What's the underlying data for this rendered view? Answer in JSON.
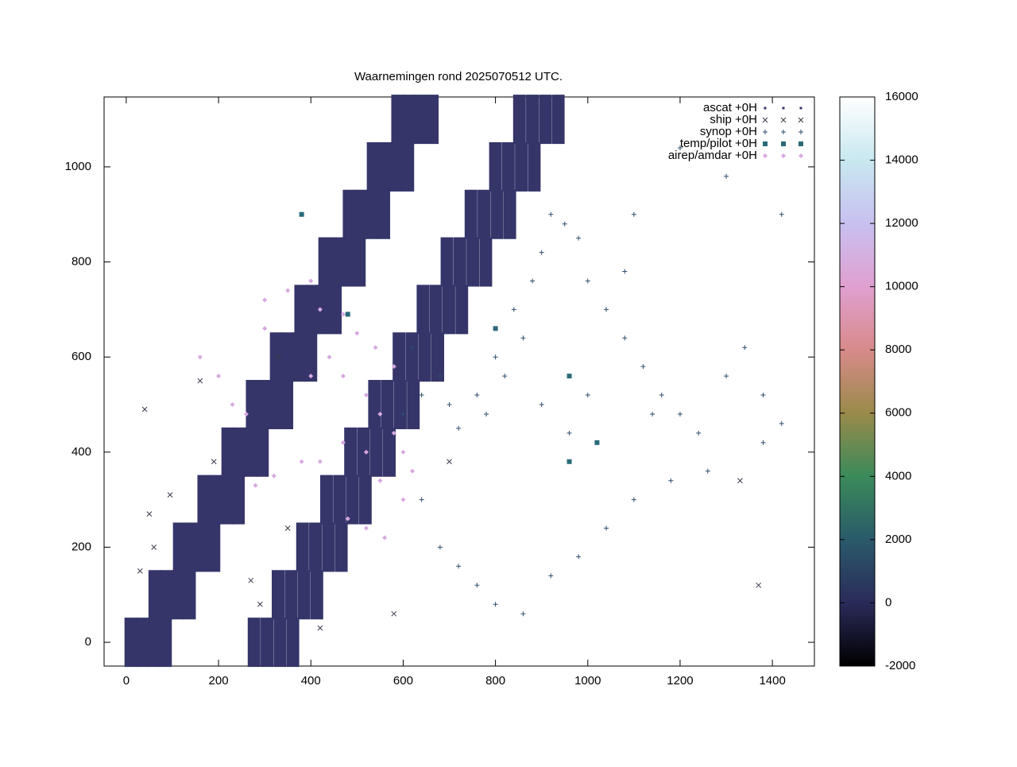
{
  "chart_data": {
    "type": "scatter",
    "title": "Waarnemingen rond 2025070512 UTC.",
    "xlim": [
      -48,
      1491
    ],
    "ylim": [
      -50,
      1147
    ],
    "xticks": [
      0,
      200,
      400,
      600,
      800,
      1000,
      1200,
      1400
    ],
    "yticks": [
      0,
      200,
      400,
      600,
      800,
      1000
    ],
    "grid": false,
    "legend": "top-right",
    "colorbar": {
      "lim": [
        -2000,
        16000
      ],
      "ticks": [
        -2000,
        0,
        2000,
        4000,
        6000,
        8000,
        10000,
        12000,
        14000,
        16000
      ],
      "colors": [
        "#000000",
        "#2a2a5a",
        "#2a5a6a",
        "#3a8a5a",
        "#9a8a4a",
        "#d88a8a",
        "#e0a0d0",
        "#c8c0f0",
        "#c8e8f0",
        "#ffffff"
      ]
    },
    "series": [
      {
        "name": "ascat +0H",
        "marker": "dot",
        "color": "#35356a",
        "x": [
          10,
          35,
          60,
          85,
          62,
          87,
          112,
          137,
          115,
          140,
          165,
          190,
          168,
          193,
          218,
          243,
          220,
          245,
          270,
          295,
          273,
          298,
          323,
          348,
          325,
          350,
          375,
          400,
          378,
          403,
          428,
          453,
          430,
          455,
          480,
          505,
          483,
          508,
          533,
          558,
          535,
          560,
          585,
          610,
          588,
          613,
          638,
          663,
          277,
          305,
          333,
          361,
          329,
          357,
          385,
          413,
          382,
          410,
          438,
          466,
          434,
          462,
          490,
          518,
          486,
          514,
          542,
          570,
          538,
          566,
          594,
          622,
          591,
          619,
          647,
          675,
          643,
          671,
          699,
          727,
          695,
          723,
          751,
          779,
          747,
          775,
          803,
          831,
          800,
          828,
          856,
          884,
          852,
          880,
          908,
          936
        ],
        "y": [
          0,
          0,
          0,
          0,
          100,
          100,
          100,
          100,
          200,
          200,
          200,
          200,
          300,
          300,
          300,
          300,
          400,
          400,
          400,
          400,
          500,
          500,
          500,
          500,
          600,
          600,
          600,
          600,
          700,
          700,
          700,
          700,
          800,
          800,
          800,
          800,
          900,
          900,
          900,
          900,
          1000,
          1000,
          1000,
          1000,
          1100,
          1100,
          1100,
          1100,
          0,
          0,
          0,
          0,
          100,
          100,
          100,
          100,
          200,
          200,
          200,
          200,
          300,
          300,
          300,
          300,
          400,
          400,
          400,
          400,
          500,
          500,
          500,
          500,
          600,
          600,
          600,
          600,
          700,
          700,
          700,
          700,
          800,
          800,
          800,
          800,
          900,
          900,
          900,
          900,
          1000,
          1000,
          1000,
          1000,
          1100,
          1100,
          1100,
          1100
        ]
      },
      {
        "name": "ship +0H",
        "marker": "cross",
        "color": "#3a3a4a",
        "x": [
          30,
          50,
          60,
          95,
          40,
          190,
          290,
          270,
          350,
          420,
          580,
          700,
          1330,
          1370,
          330,
          160
        ],
        "y": [
          150,
          270,
          200,
          310,
          490,
          380,
          80,
          130,
          240,
          30,
          60,
          380,
          340,
          120,
          600,
          550
        ]
      },
      {
        "name": "synop +0H",
        "marker": "plus",
        "color": "#2e4e6e",
        "x": [
          600,
          640,
          680,
          700,
          720,
          760,
          780,
          800,
          820,
          840,
          860,
          880,
          900,
          920,
          950,
          980,
          1000,
          1040,
          1080,
          1120,
          1160,
          1200,
          1240,
          1300,
          1340,
          1380,
          1420,
          640,
          680,
          720,
          760,
          800,
          860,
          920,
          980,
          1040,
          1100,
          1180,
          1260,
          1380,
          1420,
          1300,
          1200,
          1100,
          960,
          900,
          1000,
          1140,
          620,
          1080
        ],
        "y": [
          480,
          520,
          560,
          500,
          450,
          520,
          480,
          600,
          560,
          700,
          640,
          760,
          820,
          900,
          880,
          850,
          760,
          700,
          640,
          580,
          520,
          480,
          440,
          560,
          620,
          520,
          460,
          300,
          200,
          160,
          120,
          80,
          60,
          140,
          180,
          240,
          300,
          340,
          360,
          420,
          900,
          980,
          1040,
          900,
          440,
          500,
          520,
          480,
          620,
          780
        ]
      },
      {
        "name": "temp/pilot +0H",
        "marker": "square",
        "color": "#2a6a7a",
        "x": [
          960,
          1020,
          380,
          480,
          800,
          960
        ],
        "y": [
          560,
          420,
          900,
          690,
          660,
          380
        ]
      },
      {
        "name": "airep/amdar +0H",
        "marker": "diamond",
        "color": "#d8a8e0",
        "x": [
          300,
          350,
          400,
          420,
          470,
          500,
          540,
          580,
          470,
          520,
          550,
          580,
          600,
          520,
          470,
          420,
          380,
          320,
          280,
          480,
          520,
          560,
          600,
          230,
          260,
          200,
          300,
          160,
          550,
          620,
          440,
          400
        ],
        "y": [
          720,
          740,
          760,
          700,
          690,
          650,
          620,
          580,
          560,
          520,
          480,
          440,
          400,
          400,
          420,
          380,
          380,
          350,
          330,
          260,
          240,
          220,
          300,
          500,
          480,
          560,
          660,
          600,
          340,
          360,
          600,
          560
        ]
      }
    ]
  }
}
